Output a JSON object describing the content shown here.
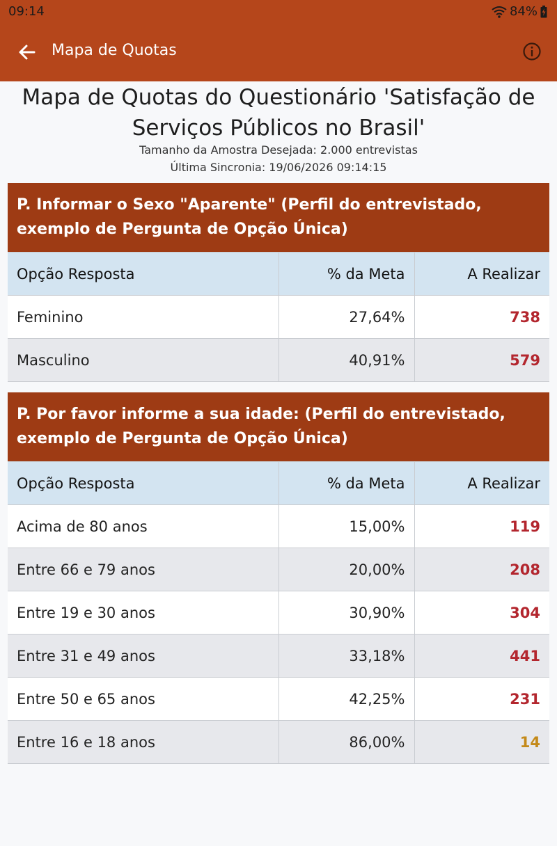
{
  "status_bar": {
    "time": "09:14",
    "battery": "84%"
  },
  "app_bar": {
    "title": "Mapa de Quotas"
  },
  "header": {
    "title_line1": "Mapa de Quotas do Questionário 'Satisfação de",
    "title_line2": "Serviços Públicos no Brasil'",
    "sample_size": "Tamanho da Amostra Desejada: 2.000 entrevistas",
    "last_sync": "Última Sincronia: 19/06/2026 09:14:15"
  },
  "columns": {
    "option": "Opção Resposta",
    "goal": "% da Meta",
    "remaining": "A Realizar"
  },
  "colors": {
    "app_bar": "#b5461b",
    "section_header": "#9e3b14",
    "remaining_red": "#b3262e",
    "remaining_amber": "#c48a1a"
  },
  "sections": [
    {
      "title": "P. Informar o Sexo \"Aparente\" (Perfil do entrevistado, exemplo de Pergunta de Opção Única)",
      "rows": [
        {
          "option": "Feminino",
          "goal": "27,64%",
          "remaining": "738"
        },
        {
          "option": "Masculino",
          "goal": "40,91%",
          "remaining": "579"
        }
      ]
    },
    {
      "title": "P. Por favor informe a sua idade: (Perfil do entrevistado, exemplo de Pergunta de Opção Única)",
      "rows": [
        {
          "option": "Acima de 80 anos",
          "goal": "15,00%",
          "remaining": "119"
        },
        {
          "option": "Entre 66 e 79 anos",
          "goal": "20,00%",
          "remaining": "208"
        },
        {
          "option": "Entre 19 e 30 anos",
          "goal": "30,90%",
          "remaining": "304"
        },
        {
          "option": "Entre 31 e 49 anos",
          "goal": "33,18%",
          "remaining": "441"
        },
        {
          "option": "Entre 50 e 65 anos",
          "goal": "42,25%",
          "remaining": "231"
        },
        {
          "option": "Entre 16 e 18 anos",
          "goal": "86,00%",
          "remaining": "14"
        }
      ]
    }
  ]
}
